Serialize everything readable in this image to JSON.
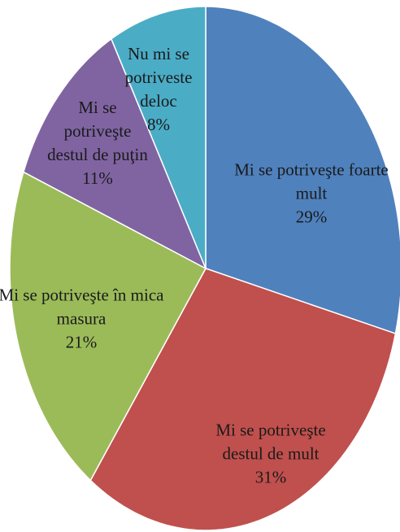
{
  "chart_data": {
    "type": "pie",
    "categories": [
      "Mi se potriveşte foarte mult",
      "Mi se potriveşte destul de mult",
      "Mi se potriveşte în mica masura",
      "Mi se potriveşte destul de puţin",
      "Nu mi se potriveste deloc"
    ],
    "values": [
      29,
      31,
      21,
      11,
      8
    ],
    "value_labels": [
      "29%",
      "31%",
      "21%",
      "11%",
      "8%"
    ],
    "colors": [
      "#4f81bd",
      "#c0504d",
      "#9bbb59",
      "#8064a2",
      "#4bacc6"
    ]
  }
}
